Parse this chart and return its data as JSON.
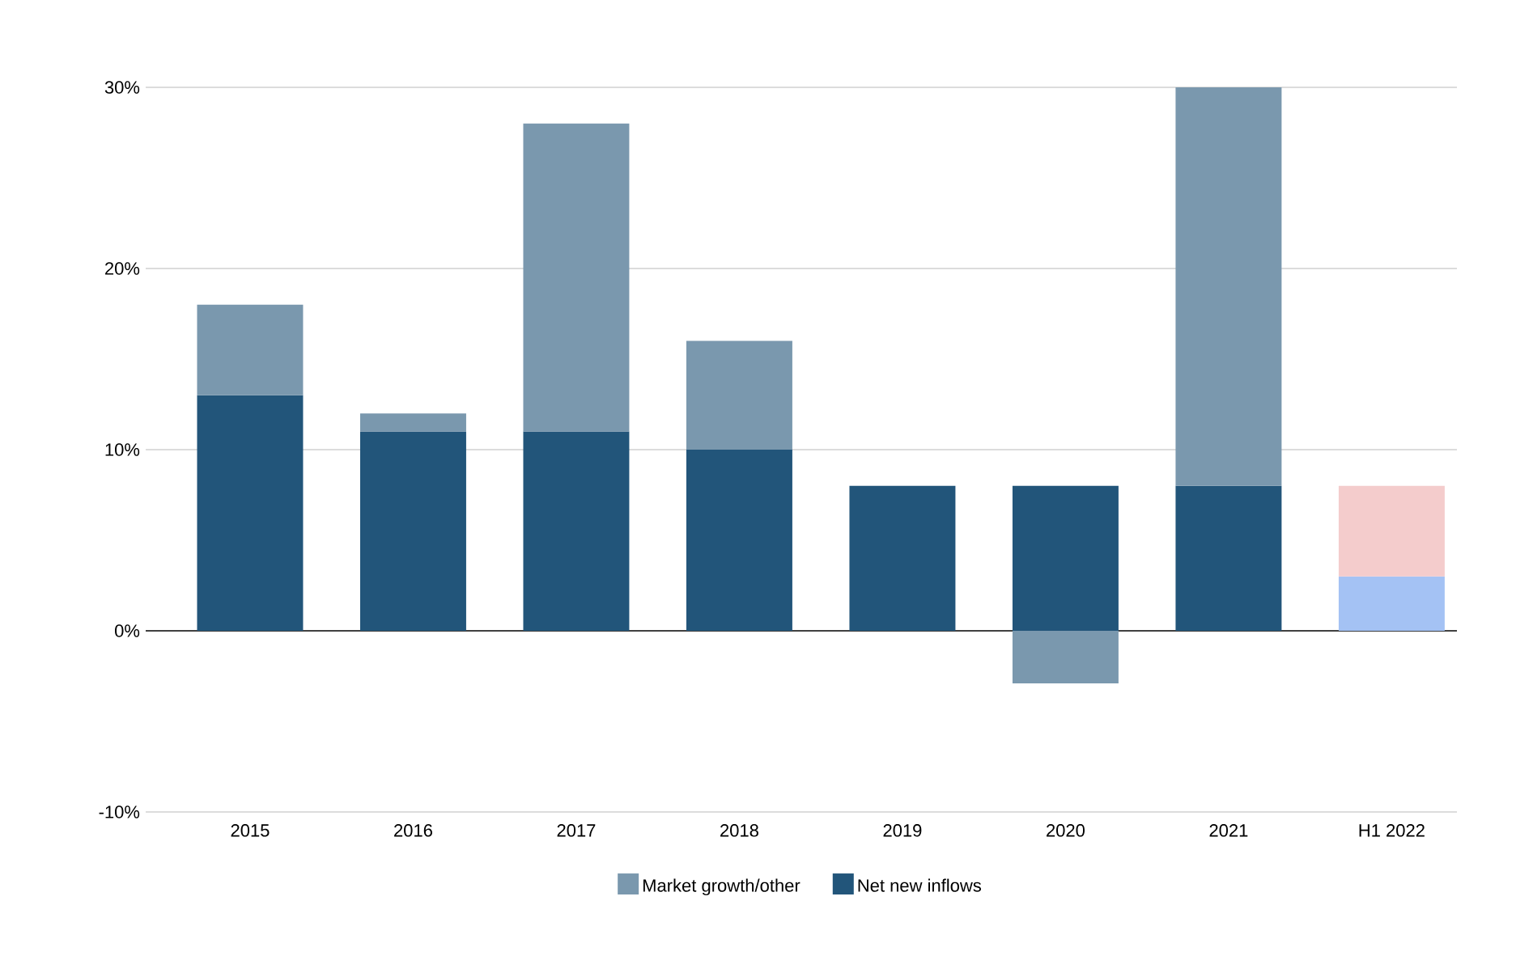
{
  "chart_data": {
    "type": "bar",
    "stacked": true,
    "categories": [
      "2015",
      "2016",
      "2017",
      "2018",
      "2019",
      "2020",
      "2021",
      "H1 2022"
    ],
    "series": [
      {
        "name": "Net new inflows",
        "color": "#22557a",
        "colors": [
          "#22557a",
          "#22557a",
          "#22557a",
          "#22557a",
          "#22557a",
          "#22557a",
          "#22557a",
          "#a4c2f4"
        ],
        "values": [
          13,
          11,
          11,
          10,
          8,
          8,
          8,
          3
        ]
      },
      {
        "name": "Market growth/other",
        "color": "#7a98ae",
        "colors": [
          "#7a98ae",
          "#7a98ae",
          "#7a98ae",
          "#7a98ae",
          "#7a98ae",
          "#7a98ae",
          "#7a98ae",
          "#f4cccc"
        ],
        "values": [
          5,
          1,
          17,
          6,
          0,
          -2.9,
          22,
          5
        ]
      }
    ],
    "ylim": [
      -10,
      30
    ],
    "yticks": [
      {
        "value": -10,
        "label": "-10%"
      },
      {
        "value": 0,
        "label": "0%"
      },
      {
        "value": 10,
        "label": "10%"
      },
      {
        "value": 20,
        "label": "20%"
      },
      {
        "value": 30,
        "label": "30%"
      }
    ],
    "grid": "y",
    "legend": "bottom"
  }
}
